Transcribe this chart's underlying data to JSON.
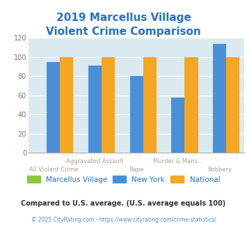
{
  "title_line1": "2019 Marcellus Village",
  "title_line2": "Violent Crime Comparison",
  "title_color": "#2471cc",
  "categories": [
    "All Violent Crime",
    "Aggravated Assault",
    "Rape",
    "Murder & Mans...",
    "Robbery"
  ],
  "marcellus_values": [
    0,
    0,
    0,
    0,
    0
  ],
  "newyork_values": [
    95,
    91,
    80,
    58,
    114
  ],
  "national_values": [
    100,
    100,
    100,
    100,
    100
  ],
  "marcellus_color": "#8dc63f",
  "newyork_color": "#4a90d9",
  "national_color": "#f5a623",
  "bg_color": "#daeaf0",
  "ylim": [
    0,
    120
  ],
  "yticks": [
    0,
    20,
    40,
    60,
    80,
    100,
    120
  ],
  "label_color": "#b0a090",
  "footnote": "Compared to U.S. average. (U.S. average equals 100)",
  "footnote2": "© 2025 CityRating.com - https://www.cityrating.com/crime-statistics/",
  "footnote_color": "#333333",
  "link_color": "#4a90d9",
  "bar_width": 0.32,
  "top_labels": {
    "1": "Aggravated Assault",
    "3": "Murder & Mans..."
  },
  "bot_labels": {
    "0": "All Violent Crime",
    "2": "Rape",
    "4": "Robbery"
  }
}
